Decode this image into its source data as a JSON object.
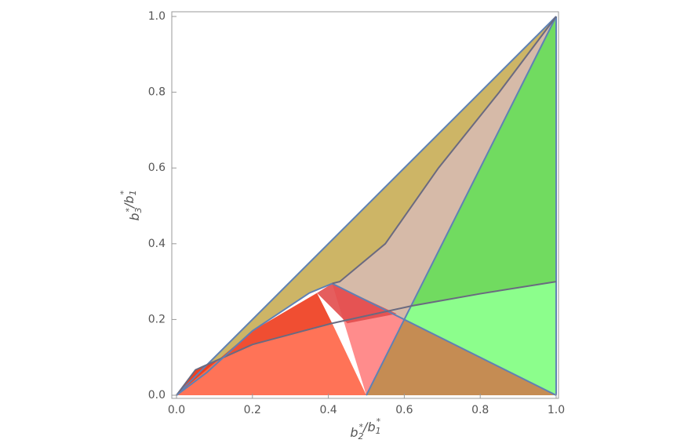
{
  "chart_data": {
    "type": "region",
    "x_label": {
      "terms": [
        {
          "base": "b",
          "sup": "*",
          "sub": "2"
        },
        {
          "base": "b",
          "sup": "*",
          "sub": "1"
        }
      ],
      "separator": "/"
    },
    "y_label": {
      "terms": [
        {
          "base": "b",
          "sup": "*",
          "sub": "3"
        },
        {
          "base": "b",
          "sup": "*",
          "sub": "1"
        }
      ],
      "separator": "/"
    },
    "xlim": [
      0,
      1
    ],
    "ylim": [
      0,
      1
    ],
    "xticks": [
      {
        "value": 0,
        "label": "0.0"
      },
      0.2,
      0.4,
      0.6,
      0.8,
      {
        "value": 1,
        "label": "1.0"
      }
    ],
    "yticks": [
      {
        "value": 0,
        "label": "0.0"
      },
      0.2,
      0.4,
      0.6,
      0.8,
      {
        "value": 1,
        "label": "1.0"
      }
    ],
    "regions": [
      {
        "color": "#c8ad55",
        "x": [
          0,
          1,
          0.85,
          0.69,
          0.55,
          0.43,
          0.41,
          0.35,
          0.2,
          0.08
        ],
        "y": [
          0,
          1,
          0.8,
          0.6,
          0.4,
          0.3,
          0.295,
          0.27,
          0.17,
          0.06
        ]
      },
      {
        "color": "#d2b39f",
        "x": [
          0.41,
          0.43,
          0.55,
          0.69,
          0.85,
          1,
          0.6
        ],
        "y": [
          0.295,
          0.3,
          0.4,
          0.6,
          0.8,
          1,
          0.2
        ]
      },
      {
        "color": "#62d74f",
        "x": [
          1,
          1,
          0.8,
          0.62
        ],
        "y": [
          1,
          0.3,
          0.268,
          0.236
        ]
      },
      {
        "color": "#80fe80",
        "x": [
          0.6,
          1,
          1,
          0.8,
          0.62
        ],
        "y": [
          0.2,
          0,
          0.3,
          0.268,
          0.236
        ]
      },
      {
        "color": "#bf7f40",
        "x": [
          0.5,
          1,
          0.6
        ],
        "y": [
          0,
          0,
          0.2
        ]
      },
      {
        "color": "#ff6445",
        "x": [
          0,
          0.5,
          0.41,
          0.2,
          0.05
        ],
        "y": [
          0,
          0,
          0.19,
          0.134,
          0.067
        ]
      },
      {
        "color": "#ee3b1c",
        "x": [
          0,
          0.05,
          0.2,
          0.41,
          0.37,
          0.2
        ],
        "y": [
          0,
          0.067,
          0.134,
          0.19,
          0.27,
          0.17
        ]
      },
      {
        "color": "#ff7f7f",
        "x": [
          0.41,
          0.6,
          0.5
        ],
        "y": [
          0.295,
          0.2,
          0
        ]
      },
      {
        "color": "#e24c4c",
        "x": [
          0.37,
          0.41,
          0.58,
          0.45
        ],
        "y": [
          0.27,
          0.295,
          0.215,
          0.19
        ]
      }
    ],
    "lines": [
      {
        "color": "#5e81b5",
        "x": [
          0,
          1
        ],
        "y": [
          0,
          1
        ]
      },
      {
        "color": "#5e81b5",
        "x": [
          1,
          0.5
        ],
        "y": [
          1,
          0
        ]
      },
      {
        "color": "#5e81b5",
        "x": [
          0.41,
          1
        ],
        "y": [
          0.295,
          0
        ]
      },
      {
        "color": "#5e81b5",
        "x": [
          1,
          1
        ],
        "y": [
          0,
          1
        ]
      },
      {
        "color": "#6a6a80",
        "x": [
          0,
          0.05,
          0.2,
          0.41,
          0.62,
          0.8,
          1
        ],
        "y": [
          0,
          0.067,
          0.134,
          0.19,
          0.236,
          0.268,
          0.3
        ]
      },
      {
        "color": "#6a6a80",
        "x": [
          0.41,
          0.43,
          0.55,
          0.69,
          0.85,
          1
        ],
        "y": [
          0.295,
          0.3,
          0.4,
          0.6,
          0.8,
          1
        ]
      },
      {
        "color": "#5e81b5",
        "x": [
          0,
          0.08,
          0.2,
          0.35,
          0.41
        ],
        "y": [
          0,
          0.06,
          0.17,
          0.27,
          0.295
        ]
      }
    ]
  }
}
